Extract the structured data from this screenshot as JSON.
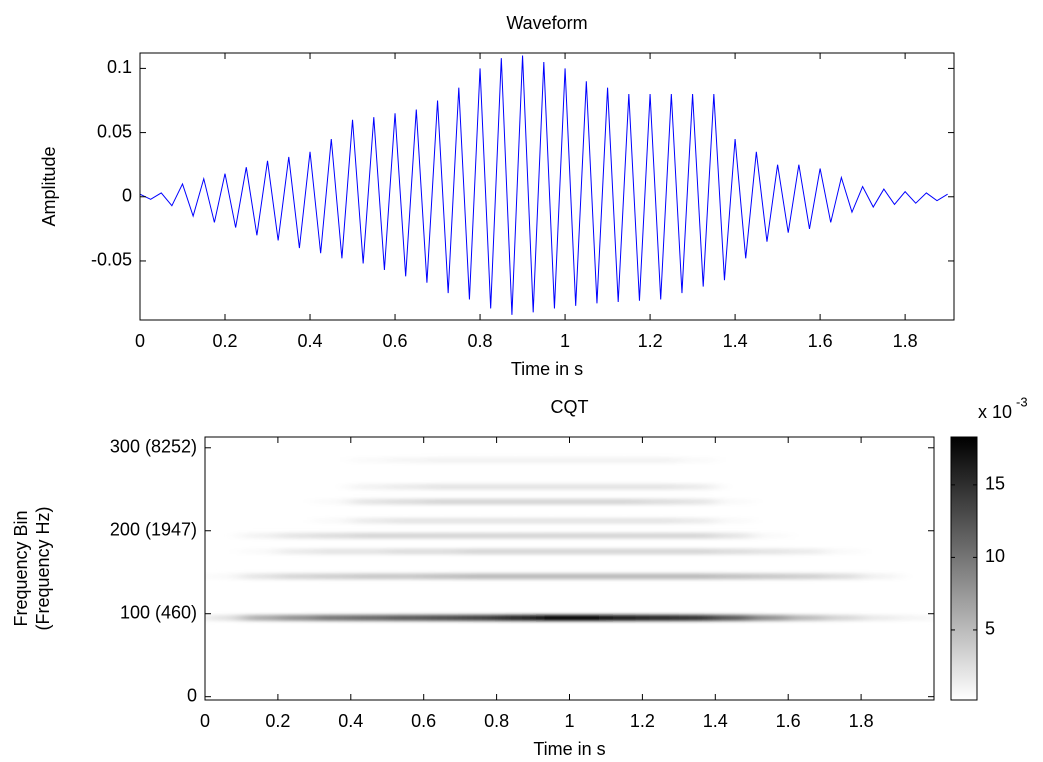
{
  "chart_data": [
    {
      "type": "line",
      "title": "Waveform",
      "xlabel": "Time in s",
      "ylabel": "Amplitude",
      "x": [
        0,
        0.025,
        0.05,
        0.075,
        0.1,
        0.125,
        0.15,
        0.175,
        0.2,
        0.225,
        0.25,
        0.275,
        0.3,
        0.325,
        0.35,
        0.375,
        0.4,
        0.425,
        0.45,
        0.475,
        0.5,
        0.525,
        0.55,
        0.575,
        0.6,
        0.625,
        0.65,
        0.675,
        0.7,
        0.725,
        0.75,
        0.775,
        0.8,
        0.825,
        0.85,
        0.875,
        0.9,
        0.925,
        0.95,
        0.975,
        1.0,
        1.025,
        1.05,
        1.075,
        1.1,
        1.125,
        1.15,
        1.175,
        1.2,
        1.225,
        1.25,
        1.275,
        1.3,
        1.325,
        1.35,
        1.375,
        1.4,
        1.425,
        1.45,
        1.475,
        1.5,
        1.525,
        1.55,
        1.575,
        1.6,
        1.625,
        1.65,
        1.675,
        1.7,
        1.725,
        1.75,
        1.775,
        1.8,
        1.825,
        1.85,
        1.875,
        1.9
      ],
      "values": [
        0.002,
        -0.002,
        0.003,
        -0.007,
        0.01,
        -0.015,
        0.014,
        -0.02,
        0.018,
        -0.024,
        0.023,
        -0.03,
        0.028,
        -0.034,
        0.031,
        -0.04,
        0.035,
        -0.044,
        0.045,
        -0.048,
        0.06,
        -0.052,
        0.062,
        -0.057,
        0.065,
        -0.062,
        0.068,
        -0.067,
        0.075,
        -0.075,
        0.085,
        -0.08,
        0.1,
        -0.087,
        0.108,
        -0.092,
        0.11,
        -0.09,
        0.105,
        -0.087,
        0.1,
        -0.085,
        0.09,
        -0.083,
        0.085,
        -0.082,
        0.08,
        -0.081,
        0.08,
        -0.08,
        0.08,
        -0.075,
        0.08,
        -0.07,
        0.08,
        -0.065,
        0.045,
        -0.048,
        0.035,
        -0.035,
        0.025,
        -0.028,
        0.025,
        -0.025,
        0.022,
        -0.02,
        0.015,
        -0.012,
        0.008,
        -0.008,
        0.006,
        -0.006,
        0.004,
        -0.005,
        0.003,
        -0.003,
        0.002
      ],
      "color": "#0000ff",
      "xlim": [
        0,
        1.915
      ],
      "xticks": [
        0,
        0.2,
        0.4,
        0.6,
        0.8,
        1,
        1.2,
        1.4,
        1.6,
        1.8
      ],
      "ylim": [
        -0.096,
        0.112
      ],
      "yticks": [
        -0.05,
        0,
        0.05,
        0.1
      ]
    },
    {
      "type": "heatmap",
      "title": "CQT",
      "xlabel": "Time in s",
      "ylabel": [
        "Frequency Bin",
        "(Frequency Hz)"
      ],
      "x": [
        0.05,
        0.15,
        0.25,
        0.35,
        0.45,
        0.55,
        0.65,
        0.75,
        0.85,
        0.95,
        1.05,
        1.15,
        1.25,
        1.35,
        1.45,
        1.55,
        1.65,
        1.75,
        1.85,
        1.95
      ],
      "y": [
        95,
        145,
        175,
        194,
        212,
        235,
        253,
        285
      ],
      "z": [
        [
          2,
          6,
          8,
          10,
          11,
          12,
          13,
          14,
          16,
          18,
          18,
          17,
          16,
          15,
          12,
          8,
          5,
          3,
          1.5,
          0.8
        ],
        [
          0.5,
          2,
          3,
          3.5,
          4,
          4,
          4.5,
          5,
          5,
          5,
          5,
          5,
          5,
          5,
          4.5,
          4,
          3.5,
          2.5,
          1,
          0
        ],
        [
          0,
          0.5,
          1.5,
          2,
          2,
          2.5,
          2.5,
          3,
          3,
          3,
          3,
          3,
          3,
          3,
          2.5,
          2,
          1.5,
          0.5,
          0,
          0
        ],
        [
          0,
          1,
          2,
          2.5,
          3,
          3,
          3,
          3,
          3,
          3,
          3,
          3,
          3,
          3,
          2,
          0.5,
          0,
          0,
          0,
          0
        ],
        [
          0,
          0,
          0,
          0.5,
          1.5,
          2,
          2,
          2,
          2,
          2,
          2,
          2,
          2,
          1.5,
          0.5,
          0,
          0,
          0,
          0,
          0
        ],
        [
          0,
          0,
          0,
          0.5,
          2,
          2.5,
          3,
          3,
          3,
          3,
          3,
          3,
          2.5,
          2,
          0.5,
          0,
          0,
          0,
          0,
          0
        ],
        [
          0,
          0,
          0,
          0,
          1,
          1.5,
          2,
          2,
          2,
          2,
          2,
          2,
          2,
          1.5,
          0,
          0,
          0,
          0,
          0,
          0
        ],
        [
          0,
          0,
          0,
          0,
          0.5,
          0.8,
          1,
          1,
          1,
          1,
          1,
          1,
          1,
          0.5,
          0,
          0,
          0,
          0,
          0,
          0
        ]
      ],
      "xlim": [
        0,
        2
      ],
      "xticks": [
        0,
        0.2,
        0.4,
        0.6,
        0.8,
        1,
        1.2,
        1.4,
        1.6,
        1.8
      ],
      "ylim": [
        -4,
        313
      ],
      "yticks": [
        0,
        {
          "value": 100,
          "label": "100 (460)"
        },
        {
          "value": 200,
          "label": "200 (1947)"
        },
        {
          "value": 300,
          "label": "300 (8252)"
        }
      ],
      "colorbar": {
        "label": "x 10",
        "exponent": "-3",
        "lim": [
          0.17,
          18.3
        ],
        "ticks": [
          5,
          10,
          15
        ],
        "cmap": [
          "#ffffff",
          "#000000"
        ]
      }
    }
  ]
}
